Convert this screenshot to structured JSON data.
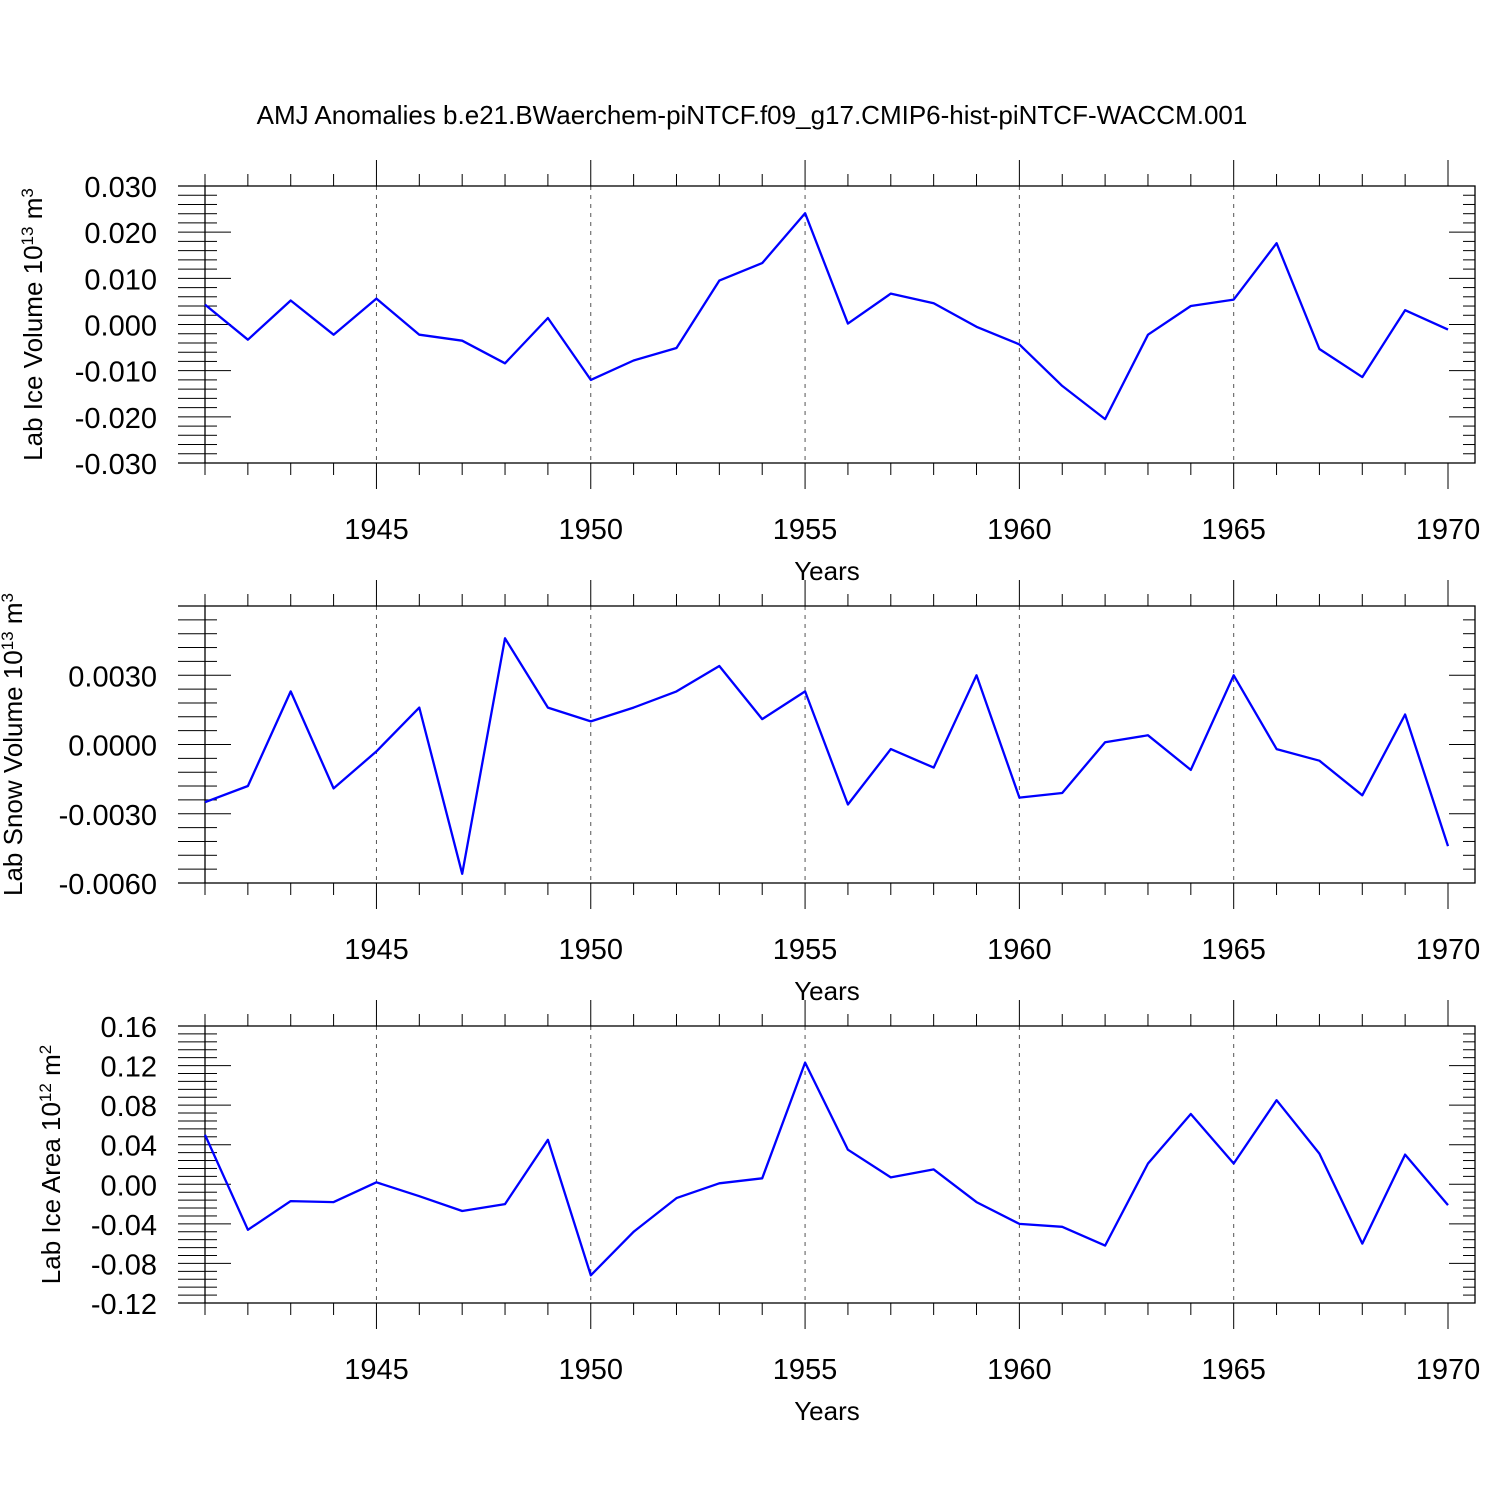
{
  "title": "AMJ Anomalies b.e21.BWaerchem-piNTCF.f09_g17.CMIP6-hist-piNTCF-WACCM.001",
  "colors": {
    "line": "#0000ff",
    "axes": "#000000",
    "grid": "#555555"
  },
  "chart_data": [
    {
      "type": "line",
      "title": "",
      "xlabel": "Years",
      "ylabel": "Lab Ice Volume 10",
      "ylabel_exp": "13",
      "ylabel_unit": " m",
      "ylabel_unit_exp": "3",
      "xlim": [
        1941,
        1970
      ],
      "ylim": [
        -0.03,
        0.03
      ],
      "yticks": [
        -0.03,
        -0.02,
        -0.01,
        0.0,
        0.01,
        0.02,
        0.03
      ],
      "ytick_labels": [
        "-0.030",
        "-0.020",
        "-0.010",
        "0.000",
        "0.010",
        "0.020",
        "0.030"
      ],
      "xticks": [
        1945,
        1950,
        1955,
        1960,
        1965,
        1970
      ],
      "xtick_labels": [
        "1945",
        "1950",
        "1955",
        "1960",
        "1965",
        "1970"
      ],
      "grid_x": true,
      "x": [
        1941,
        1942,
        1943,
        1944,
        1945,
        1946,
        1947,
        1948,
        1949,
        1950,
        1951,
        1952,
        1953,
        1954,
        1955,
        1956,
        1957,
        1958,
        1959,
        1960,
        1961,
        1962,
        1963,
        1964,
        1965,
        1966,
        1967,
        1968,
        1969,
        1970
      ],
      "values": [
        0.0043,
        -0.0033,
        0.0052,
        -0.0022,
        0.0056,
        -0.0022,
        -0.0035,
        -0.0084,
        0.0014,
        -0.012,
        -0.0078,
        -0.0051,
        0.0095,
        0.0133,
        0.0241,
        0.0002,
        0.0067,
        0.0046,
        -0.0005,
        -0.0043,
        -0.0133,
        -0.0205,
        -0.0022,
        0.004,
        0.0054,
        0.0176,
        -0.0053,
        -0.0114,
        0.0031,
        -0.0011
      ]
    },
    {
      "type": "line",
      "title": "",
      "xlabel": "Years",
      "ylabel": "Lab Snow Volume 10",
      "ylabel_exp": "13",
      "ylabel_unit": " m",
      "ylabel_unit_exp": "3",
      "xlim": [
        1941,
        1970
      ],
      "ylim": [
        -0.006,
        0.006
      ],
      "yticks": [
        -0.006,
        -0.003,
        0.0,
        0.003
      ],
      "ytick_labels": [
        "-0.0060",
        "-0.0030",
        "0.0000",
        "0.0030"
      ],
      "xticks": [
        1945,
        1950,
        1955,
        1960,
        1965,
        1970
      ],
      "xtick_labels": [
        "1945",
        "1950",
        "1955",
        "1960",
        "1965",
        "1970"
      ],
      "grid_x": true,
      "x": [
        1941,
        1942,
        1943,
        1944,
        1945,
        1946,
        1947,
        1948,
        1949,
        1950,
        1951,
        1952,
        1953,
        1954,
        1955,
        1956,
        1957,
        1958,
        1959,
        1960,
        1961,
        1962,
        1963,
        1964,
        1965,
        1966,
        1967,
        1968,
        1969,
        1970
      ],
      "values": [
        -0.0025,
        -0.0018,
        0.0023,
        -0.0019,
        -0.0003,
        0.0016,
        -0.0056,
        0.0046,
        0.0016,
        0.001,
        0.0016,
        0.0023,
        0.0034,
        0.0011,
        0.0023,
        -0.0026,
        -0.0002,
        -0.001,
        0.003,
        -0.0023,
        -0.0021,
        0.0001,
        0.0004,
        -0.0011,
        0.003,
        -0.0002,
        -0.0007,
        -0.0022,
        0.0013,
        -0.0044
      ]
    },
    {
      "type": "line",
      "title": "",
      "xlabel": "Years",
      "ylabel": "Lab Ice Area 10",
      "ylabel_exp": "12",
      "ylabel_unit": " m",
      "ylabel_unit_exp": "2",
      "xlim": [
        1941,
        1970
      ],
      "ylim": [
        -0.12,
        0.16
      ],
      "yticks": [
        -0.12,
        -0.08,
        -0.04,
        0.0,
        0.04,
        0.08,
        0.12,
        0.16
      ],
      "ytick_labels": [
        "-0.12",
        "-0.08",
        "-0.04",
        "0.00",
        "0.04",
        "0.08",
        "0.12",
        "0.16"
      ],
      "xticks": [
        1945,
        1950,
        1955,
        1960,
        1965,
        1970
      ],
      "xtick_labels": [
        "1945",
        "1950",
        "1955",
        "1960",
        "1965",
        "1970"
      ],
      "grid_x": true,
      "x": [
        1941,
        1942,
        1943,
        1944,
        1945,
        1946,
        1947,
        1948,
        1949,
        1950,
        1951,
        1952,
        1953,
        1954,
        1955,
        1956,
        1957,
        1958,
        1959,
        1960,
        1961,
        1962,
        1963,
        1964,
        1965,
        1966,
        1967,
        1968,
        1969,
        1970
      ],
      "values": [
        0.05,
        -0.046,
        -0.017,
        -0.018,
        0.002,
        -0.012,
        -0.027,
        -0.02,
        0.045,
        -0.092,
        -0.048,
        -0.014,
        0.001,
        0.006,
        0.123,
        0.035,
        0.007,
        0.015,
        -0.018,
        -0.04,
        -0.043,
        -0.062,
        0.021,
        0.071,
        0.021,
        0.085,
        0.031,
        -0.06,
        0.03,
        -0.021
      ]
    }
  ]
}
